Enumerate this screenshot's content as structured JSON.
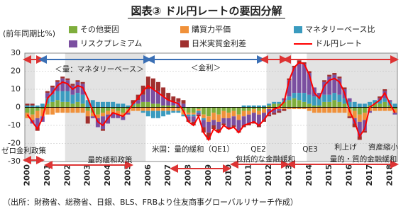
{
  "chart_data": {
    "type": "stacked_bar_line",
    "title": "図表③ ドル円レートの要因分解",
    "ylabel": "(前年同期比%)",
    "source": "（出所：財務省、総務省、日銀、BLS、FRBより住友商事グローバルリサーチ作成）",
    "ylim": [
      -30,
      30
    ],
    "yticks": [
      -30,
      -20,
      -10,
      0,
      10,
      20,
      30
    ],
    "grid": true,
    "categories": [
      "2000",
      null,
      null,
      null,
      "2001",
      null,
      null,
      null,
      "2002",
      null,
      null,
      null,
      "2003",
      null,
      null,
      null,
      "2004",
      null,
      null,
      null,
      "2005",
      null,
      null,
      null,
      "2006",
      null,
      null,
      null,
      "2007",
      null,
      null,
      null,
      "2008",
      null,
      null,
      null,
      "2009",
      null,
      null,
      null,
      "2010",
      null,
      null,
      null,
      "2011",
      null,
      null,
      null,
      "2012",
      null,
      null,
      null,
      "2013",
      null,
      null,
      null,
      "2014",
      null,
      null,
      null,
      "2015",
      null,
      null,
      null,
      "2016",
      null,
      null,
      null,
      "2017",
      null,
      null,
      null,
      "2018",
      null
    ],
    "series": [
      {
        "name": "その他要因",
        "color": "#7fae3c",
        "values": [
          -3,
          -4,
          -2,
          -1,
          2,
          3,
          4,
          3,
          3,
          2,
          3,
          2,
          -2,
          -3,
          -4,
          -3,
          -2,
          -1,
          -2,
          -3,
          -1,
          1,
          2,
          3,
          3,
          2,
          2,
          1,
          1,
          1,
          0,
          -2,
          -3,
          -3,
          -1,
          -4,
          -5,
          -3,
          -4,
          -2,
          -3,
          -2,
          -4,
          -2,
          -2,
          -1,
          -2,
          -1,
          1,
          2,
          2,
          3,
          4,
          5,
          4,
          3,
          2,
          1,
          1,
          3,
          3,
          4,
          3,
          2,
          -1,
          -2,
          -4,
          -3,
          1,
          2,
          2,
          3,
          1,
          -1
        ]
      },
      {
        "name": "購買力平価",
        "color": "#f0913a",
        "values": [
          -3,
          -3,
          -4,
          -4,
          -4,
          -4,
          -3,
          -3,
          -3,
          -3,
          -3,
          -3,
          -3,
          -2,
          -2,
          -2,
          -2,
          -2,
          -2,
          -2,
          -2,
          -2,
          -2,
          -2,
          -2,
          -2,
          -2,
          -2,
          -2,
          -2,
          -2,
          -2,
          -1,
          -1,
          -1,
          -2,
          -3,
          -4,
          -4,
          -4,
          -3,
          -3,
          -3,
          -3,
          -2,
          -2,
          -2,
          -2,
          -1,
          -1,
          -1,
          -1,
          -1,
          -1,
          -1,
          -1,
          -2,
          -3,
          -3,
          -3,
          -3,
          -3,
          -3,
          -3,
          -4,
          -4,
          -4,
          -4,
          -2,
          -2,
          -2,
          -2,
          -2,
          -2
        ]
      },
      {
        "name": "マネタリーベース比",
        "color": "#3a9bbf",
        "values": [
          1,
          1,
          1,
          2,
          3,
          4,
          5,
          6,
          6,
          5,
          5,
          5,
          4,
          4,
          3,
          3,
          3,
          3,
          2,
          2,
          1,
          1,
          0,
          -1,
          -3,
          -4,
          -4,
          -3,
          -2,
          -1,
          -1,
          -1,
          -1,
          -1,
          -1,
          -1,
          0,
          0,
          0,
          0,
          0,
          0,
          0,
          1,
          1,
          1,
          1,
          1,
          1,
          1,
          1,
          1,
          2,
          3,
          4,
          5,
          5,
          5,
          5,
          4,
          4,
          4,
          4,
          3,
          3,
          3,
          2,
          2,
          2,
          2,
          2,
          2,
          2,
          2
        ]
      },
      {
        "name": "リスクプレミアム",
        "color": "#7b4fa0",
        "values": [
          0,
          -2,
          -5,
          -3,
          3,
          4,
          5,
          7,
          6,
          5,
          6,
          6,
          0,
          -1,
          -5,
          -7,
          -5,
          -3,
          -2,
          -2,
          -1,
          0,
          2,
          4,
          7,
          8,
          7,
          5,
          3,
          2,
          3,
          2,
          -2,
          -3,
          -1,
          -4,
          -6,
          -3,
          -4,
          -3,
          -5,
          -5,
          -6,
          -5,
          -5,
          -5,
          -6,
          -4,
          -3,
          -2,
          -1,
          1,
          9,
          14,
          16,
          16,
          12,
          5,
          2,
          7,
          10,
          10,
          9,
          5,
          2,
          -3,
          -8,
          -6,
          -1,
          0,
          1,
          4,
          1,
          -1
        ]
      },
      {
        "name": "日米実質金利差",
        "color": "#a0302e",
        "values": [
          1,
          1,
          -2,
          0,
          1,
          1,
          1,
          1,
          1,
          1,
          1,
          1,
          -4,
          0,
          0,
          -1,
          0,
          0,
          0,
          0,
          0,
          2,
          3,
          5,
          7,
          6,
          5,
          5,
          4,
          3,
          2,
          2,
          -1,
          -2,
          -1,
          -3,
          -4,
          -2,
          -2,
          -1,
          -1,
          -1,
          -1,
          -1,
          -1,
          -1,
          -1,
          -1,
          -1,
          -1,
          -1,
          -1,
          1,
          1,
          2,
          1,
          1,
          0,
          0,
          1,
          1,
          1,
          1,
          1,
          -1,
          -2,
          -2,
          -1,
          0,
          0,
          1,
          1,
          0,
          0
        ]
      }
    ],
    "line": {
      "name": "ドル円レート",
      "color": "#ff0000",
      "values": [
        -4,
        -8,
        -12,
        -6,
        5,
        8,
        12,
        14,
        13,
        10,
        12,
        11,
        5,
        -2,
        -8,
        -10,
        -6,
        -3,
        -4,
        -5,
        -2,
        2,
        5,
        9,
        12,
        10,
        8,
        6,
        4,
        3,
        2,
        -2,
        -8,
        -10,
        -5,
        -14,
        -18,
        -12,
        -14,
        -10,
        -12,
        -11,
        -14,
        -10,
        -9,
        -8,
        -10,
        -7,
        -3,
        -1,
        0,
        3,
        15,
        22,
        25,
        24,
        18,
        8,
        5,
        12,
        15,
        16,
        14,
        8,
        -2,
        -8,
        -16,
        -12,
        0,
        2,
        4,
        8,
        2,
        -3
      ]
    },
    "annotations": [
      "＜量：マネタリーベース＞",
      "＜金利＞",
      "ゼロ金利政策",
      "量的緩和政策",
      "米国：量的緩和（QE1）",
      "QE2",
      "包括的な金融緩和",
      "QE3",
      "利上げ",
      "資産縮小",
      "量的・質的金融緩和"
    ]
  }
}
